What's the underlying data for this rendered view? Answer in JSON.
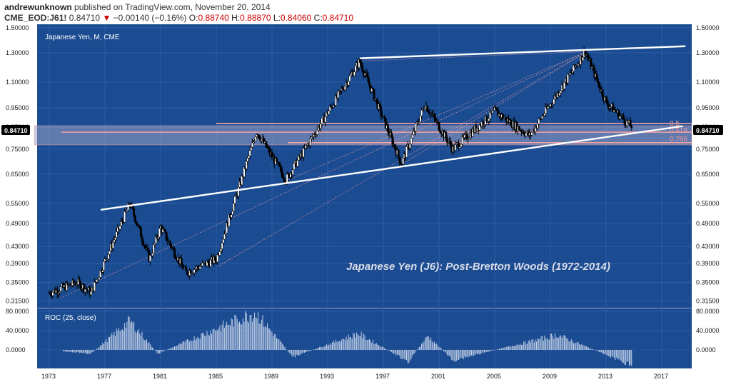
{
  "header": {
    "author": "andrewunknown",
    "published": "published on TradingView.com, November 20, 2014",
    "symbol": "CME_EOD:J61!",
    "last": "0.84710",
    "change_arrow": "▼",
    "change": "−0.00140 (−0.16%)",
    "o_label": "O:",
    "o_value": "0.88740",
    "h_label": "H:",
    "h_value": "0.88870",
    "l_label": "L:",
    "l_value": "0.84060",
    "c_label": "C:",
    "c_value": "0.84710"
  },
  "main_pane": {
    "title": "Japanese Yen, M, CME",
    "annotation": "Japanese Yen (J6): Post-Bretton Woods (1972-2014)",
    "price_tag": "0.84710",
    "fib_labels": [
      "0.5",
      "0.618",
      "0.786"
    ]
  },
  "roc_pane": {
    "title": "ROC (25, close)"
  },
  "colors": {
    "pane_bg": "#1b4b91",
    "bar_body": "#ffffff",
    "bar_outline": "#000000",
    "trendline": "#ffffff",
    "fib_line": "#f4a4a4",
    "zone_fill": "#9aa2c6",
    "price_tag_bg": "#000000",
    "roc_bars": "#c6d3ea",
    "down_arrow": "#cc0000"
  },
  "chart_data": [
    {
      "type": "ohlc",
      "title": "Japanese Yen, M, CME",
      "y_scale": "log",
      "y_ticks": [
        "1.50000",
        "1.30000",
        "1.10000",
        "0.95000",
        "0.85000",
        "0.75000",
        "0.65000",
        "0.55000",
        "0.49000",
        "0.43000",
        "0.39000",
        "0.35000",
        "0.31500"
      ],
      "x_ticks": [
        "1973",
        "1977",
        "1981",
        "1985",
        "1989",
        "1993",
        "1997",
        "2001",
        "2005",
        "2009",
        "2013",
        "2017"
      ],
      "key_points": [
        {
          "x": 1973,
          "y": 0.33
        },
        {
          "x": 1975,
          "y": 0.35
        },
        {
          "x": 1976,
          "y": 0.33
        },
        {
          "x": 1978.8,
          "y": 0.55
        },
        {
          "x": 1980.2,
          "y": 0.4
        },
        {
          "x": 1981,
          "y": 0.48
        },
        {
          "x": 1982.8,
          "y": 0.37
        },
        {
          "x": 1985,
          "y": 0.4
        },
        {
          "x": 1987.9,
          "y": 0.83
        },
        {
          "x": 1990,
          "y": 0.63
        },
        {
          "x": 1995.3,
          "y": 1.24
        },
        {
          "x": 1998.3,
          "y": 0.69
        },
        {
          "x": 2000,
          "y": 0.97
        },
        {
          "x": 2002,
          "y": 0.75
        },
        {
          "x": 2005,
          "y": 0.93
        },
        {
          "x": 2007.5,
          "y": 0.81
        },
        {
          "x": 2011.5,
          "y": 1.31
        },
        {
          "x": 2013,
          "y": 0.98
        },
        {
          "x": 2014.9,
          "y": 0.847
        }
      ],
      "fib_levels": [
        {
          "label": "0.5"
        },
        {
          "label": "0.618"
        },
        {
          "label": "0.786"
        }
      ],
      "last_value": 0.8471
    },
    {
      "type": "bar",
      "title": "ROC (25, close)",
      "y_ticks": [
        "80.0000",
        "40.0000",
        "0.0000"
      ],
      "key_points": [
        {
          "x": 1978.8,
          "y": 62
        },
        {
          "x": 1980.8,
          "y": -8
        },
        {
          "x": 1987.8,
          "y": 80
        },
        {
          "x": 1990.5,
          "y": -15
        },
        {
          "x": 1995.2,
          "y": 35
        },
        {
          "x": 1998.8,
          "y": -25
        },
        {
          "x": 2000.2,
          "y": 30
        },
        {
          "x": 2002,
          "y": -22
        },
        {
          "x": 2009.5,
          "y": 32
        },
        {
          "x": 2014.8,
          "y": -32
        }
      ]
    }
  ]
}
